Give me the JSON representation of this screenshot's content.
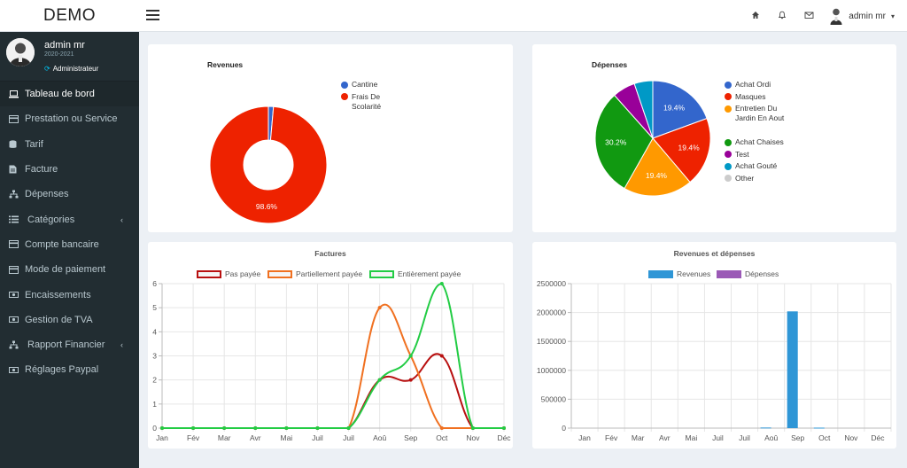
{
  "header": {
    "brand": "DEMO",
    "user_name": "admin mr"
  },
  "sidebar": {
    "profile": {
      "name": "admin mr",
      "year": "2020-2021",
      "role": "Administrateur"
    },
    "items": [
      {
        "label": "Tableau de bord",
        "icon": "laptop-icon",
        "active": true
      },
      {
        "label": "Prestation ou Service",
        "icon": "credit-card-icon"
      },
      {
        "label": "Tarif",
        "icon": "database-icon"
      },
      {
        "label": "Facture",
        "icon": "file-icon"
      },
      {
        "label": "Dépenses",
        "icon": "sitemap-icon"
      },
      {
        "label": "Catégories",
        "icon": "list-icon",
        "has_submenu": true
      },
      {
        "label": "Compte bancaire",
        "icon": "credit-card-icon"
      },
      {
        "label": "Mode de paiement",
        "icon": "credit-card-icon"
      },
      {
        "label": "Encaissements",
        "icon": "money-icon"
      },
      {
        "label": "Gestion de TVA",
        "icon": "money-icon"
      },
      {
        "label": "Rapport Financier",
        "icon": "sitemap-icon",
        "has_submenu": true
      },
      {
        "label": "Réglages Paypal",
        "icon": "money-icon"
      }
    ]
  },
  "chart_data": [
    {
      "type": "pie",
      "title": "Revenues",
      "labels": [
        "Cantine",
        "Frais De Scolarité"
      ],
      "values": [
        1.4,
        98.6
      ],
      "colors": [
        "#3366cc",
        "#ee2200"
      ],
      "data_labels": [
        "",
        "98.6%"
      ],
      "legend": "right"
    },
    {
      "type": "pie",
      "title": "Dépenses",
      "labels": [
        "Achat Ordi",
        "Masques",
        "Entretien Du Jardin En Aout",
        "Achat Chaises",
        "Test",
        "Achat Gouté",
        "Other"
      ],
      "values": [
        19.4,
        19.4,
        19.4,
        30.2,
        6.4,
        5.2,
        0
      ],
      "colors": [
        "#3366cc",
        "#ee2200",
        "#ff9900",
        "#119911",
        "#990099",
        "#0099c6",
        "#cccccc"
      ],
      "data_labels": [
        "19.4%",
        "19.4%",
        "19.4%",
        "30.2%",
        "",
        "",
        ""
      ],
      "legend": "right"
    },
    {
      "type": "line",
      "title": "Factures",
      "categories": [
        "Jan",
        "Fév",
        "Mar",
        "Avr",
        "Mai",
        "Juil",
        "Juil",
        "Aoû",
        "Sep",
        "Oct",
        "Nov",
        "Déc"
      ],
      "series": [
        {
          "name": "Pas payée",
          "color": "#b81010",
          "values": [
            0,
            0,
            0,
            0,
            0,
            0,
            0,
            2,
            2,
            3,
            0,
            0
          ]
        },
        {
          "name": "Partiellement payée",
          "color": "#f07020",
          "values": [
            0,
            0,
            0,
            0,
            0,
            0,
            0,
            5,
            3,
            0,
            0,
            0
          ]
        },
        {
          "name": "Entièrement payée",
          "color": "#22cc44",
          "values": [
            0,
            0,
            0,
            0,
            0,
            0,
            0,
            2,
            3,
            6,
            0,
            0
          ]
        }
      ],
      "ylim": [
        0,
        6
      ],
      "yticks": [
        0,
        1,
        2,
        3,
        4,
        5,
        6
      ],
      "grid": true,
      "legend": "top"
    },
    {
      "type": "bar",
      "title": "Revenues et dépenses",
      "categories": [
        "Jan",
        "Fév",
        "Mar",
        "Avr",
        "Mai",
        "Juil",
        "Juil",
        "Aoû",
        "Sep",
        "Oct",
        "Nov",
        "Déc"
      ],
      "series": [
        {
          "name": "Revenues",
          "color": "#2f96d6",
          "values": [
            0,
            0,
            0,
            0,
            0,
            0,
            0,
            10000,
            2020000,
            8000,
            0,
            0
          ]
        },
        {
          "name": "Dépenses",
          "color": "#9b59b6",
          "values": [
            0,
            0,
            0,
            0,
            0,
            0,
            0,
            0,
            0,
            0,
            0,
            0
          ]
        }
      ],
      "ylim": [
        0,
        2500000
      ],
      "yticks": [
        0,
        500000,
        1000000,
        1500000,
        2000000,
        2500000
      ],
      "grid": true,
      "legend": "top"
    }
  ]
}
